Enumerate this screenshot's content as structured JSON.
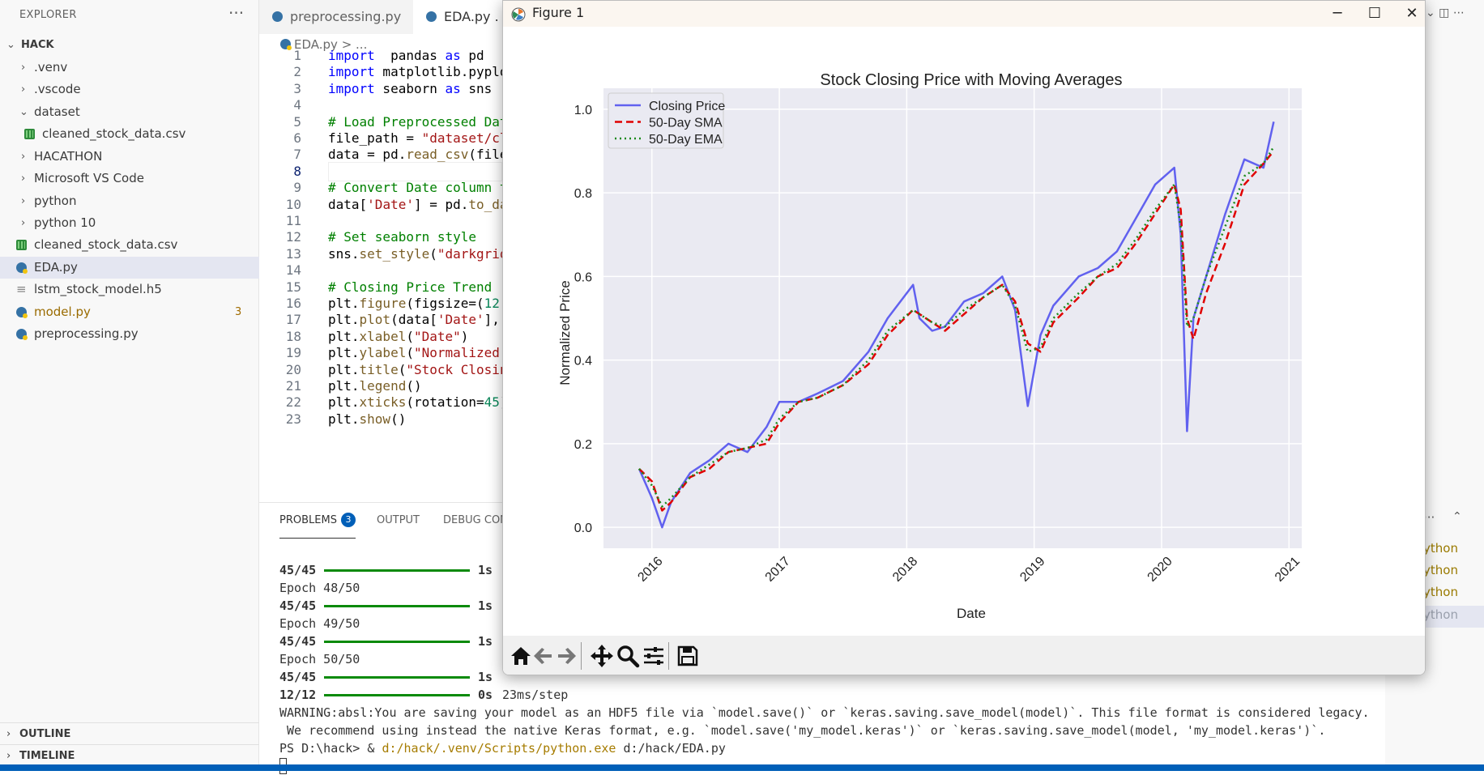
{
  "sidebar": {
    "title": "EXPLORER",
    "more": "···",
    "root": "HACK",
    "items": [
      {
        "label": ".venv",
        "type": "folder"
      },
      {
        "label": ".vscode",
        "type": "folder"
      },
      {
        "label": "dataset",
        "type": "folder-open"
      },
      {
        "label": "cleaned_stock_data.csv",
        "type": "csv"
      },
      {
        "label": "HACATHON",
        "type": "folder"
      },
      {
        "label": "Microsoft VS Code",
        "type": "folder"
      },
      {
        "label": "python",
        "type": "folder"
      },
      {
        "label": "python 10",
        "type": "folder"
      },
      {
        "label": "cleaned_stock_data.csv",
        "type": "csv"
      },
      {
        "label": "EDA.py",
        "type": "py"
      },
      {
        "label": "lstm_stock_model.h5",
        "type": "file"
      },
      {
        "label": "model.py",
        "type": "py",
        "badge": "3"
      },
      {
        "label": "preprocessing.py",
        "type": "py"
      }
    ],
    "outline": "OUTLINE",
    "timeline": "TIMELINE"
  },
  "tabs": [
    {
      "label": "preprocessing.py"
    },
    {
      "label": "EDA.py ."
    }
  ],
  "editor": {
    "breadcrumb": "EDA.py > ...",
    "lines": [
      "1",
      "2",
      "3",
      "4",
      "5",
      "6",
      "7",
      "8",
      "9",
      "10",
      "11",
      "12",
      "13",
      "14",
      "15",
      "16",
      "17",
      "18",
      "19",
      "20",
      "21",
      "22",
      "23"
    ]
  },
  "panel": {
    "tabs": {
      "problems": "PROBLEMS",
      "problems_count": "3",
      "output": "OUTPUT",
      "debug": "DEBUG CON"
    },
    "terminal": {
      "l1_step": "45/45",
      "l1_time": "1s",
      "l2": "Epoch 48/50",
      "l3_step": "45/45",
      "l3_time": "1s",
      "l4": "Epoch 49/50",
      "l5_step": "45/45",
      "l5_time": "1s",
      "l6": "Epoch 50/50",
      "l7_step": "45/45",
      "l7_time": "1s",
      "l8_step": "12/12",
      "l8_time": "0s",
      "l8_rest": "23ms/step",
      "warn1": "WARNING:absl:You are saving your model as an HDF5 file via `model.save()` or `keras.saving.save_model(model)`. This file format is considered legacy.",
      "warn2": " We recommend using instead the native Keras format, e.g. `model.save('my_model.keras')` or `keras.saving.save_model(model, 'my_model.keras')`.",
      "prompt": "PS D:\\hack> & ",
      "exe": "d:/hack/.venv/Scripts/python.exe",
      "arg": " d:/hack/EDA.py"
    }
  },
  "right_strip": {
    "items": [
      "ython",
      "ython",
      "ython",
      "ython"
    ],
    "controls": "···"
  },
  "figure": {
    "window_title": "Figure 1",
    "colors": {
      "axes_bg": "#eaeaf2",
      "closing": "#6161ef",
      "sma": "#e00000",
      "ema": "#1a8a1a"
    }
  },
  "chart_data": {
    "type": "line",
    "title": "Stock Closing Price with Moving Averages",
    "xlabel": "Date",
    "ylabel": "Normalized Price",
    "xlim": [
      2015.62,
      2021.1
    ],
    "ylim": [
      -0.05,
      1.05
    ],
    "xticks": [
      "2016",
      "2017",
      "2018",
      "2019",
      "2020",
      "2021"
    ],
    "yticks": [
      "0.0",
      "0.2",
      "0.4",
      "0.6",
      "0.8",
      "1.0"
    ],
    "grid": true,
    "legend_position": "upper-left",
    "x": [
      2015.9,
      2016.0,
      2016.08,
      2016.15,
      2016.3,
      2016.45,
      2016.6,
      2016.75,
      2016.9,
      2017.0,
      2017.15,
      2017.3,
      2017.5,
      2017.7,
      2017.85,
      2018.05,
      2018.1,
      2018.2,
      2018.3,
      2018.45,
      2018.6,
      2018.75,
      2018.85,
      2018.95,
      2019.05,
      2019.15,
      2019.35,
      2019.5,
      2019.65,
      2019.8,
      2019.95,
      2020.1,
      2020.15,
      2020.2,
      2020.25,
      2020.35,
      2020.5,
      2020.65,
      2020.8,
      2020.88
    ],
    "series": [
      {
        "name": "Closing Price",
        "values": [
          0.14,
          0.07,
          0.0,
          0.06,
          0.13,
          0.16,
          0.2,
          0.18,
          0.24,
          0.3,
          0.3,
          0.32,
          0.35,
          0.42,
          0.5,
          0.58,
          0.5,
          0.47,
          0.48,
          0.54,
          0.56,
          0.6,
          0.52,
          0.29,
          0.46,
          0.53,
          0.6,
          0.62,
          0.66,
          0.74,
          0.82,
          0.86,
          0.7,
          0.23,
          0.5,
          0.6,
          0.75,
          0.88,
          0.86,
          0.97
        ]
      },
      {
        "name": "50-Day SMA",
        "values": [
          0.14,
          0.11,
          0.04,
          0.06,
          0.12,
          0.14,
          0.18,
          0.19,
          0.2,
          0.25,
          0.3,
          0.31,
          0.34,
          0.39,
          0.46,
          0.52,
          0.51,
          0.49,
          0.47,
          0.51,
          0.55,
          0.58,
          0.54,
          0.44,
          0.42,
          0.49,
          0.55,
          0.6,
          0.62,
          0.68,
          0.75,
          0.82,
          0.76,
          0.5,
          0.45,
          0.56,
          0.68,
          0.82,
          0.87,
          0.9
        ]
      },
      {
        "name": "50-Day EMA",
        "values": [
          0.14,
          0.1,
          0.05,
          0.07,
          0.12,
          0.15,
          0.18,
          0.19,
          0.21,
          0.26,
          0.3,
          0.31,
          0.34,
          0.4,
          0.47,
          0.52,
          0.51,
          0.49,
          0.48,
          0.52,
          0.55,
          0.58,
          0.53,
          0.42,
          0.43,
          0.5,
          0.56,
          0.6,
          0.63,
          0.69,
          0.76,
          0.82,
          0.72,
          0.48,
          0.5,
          0.6,
          0.72,
          0.84,
          0.87,
          0.91
        ]
      }
    ]
  }
}
